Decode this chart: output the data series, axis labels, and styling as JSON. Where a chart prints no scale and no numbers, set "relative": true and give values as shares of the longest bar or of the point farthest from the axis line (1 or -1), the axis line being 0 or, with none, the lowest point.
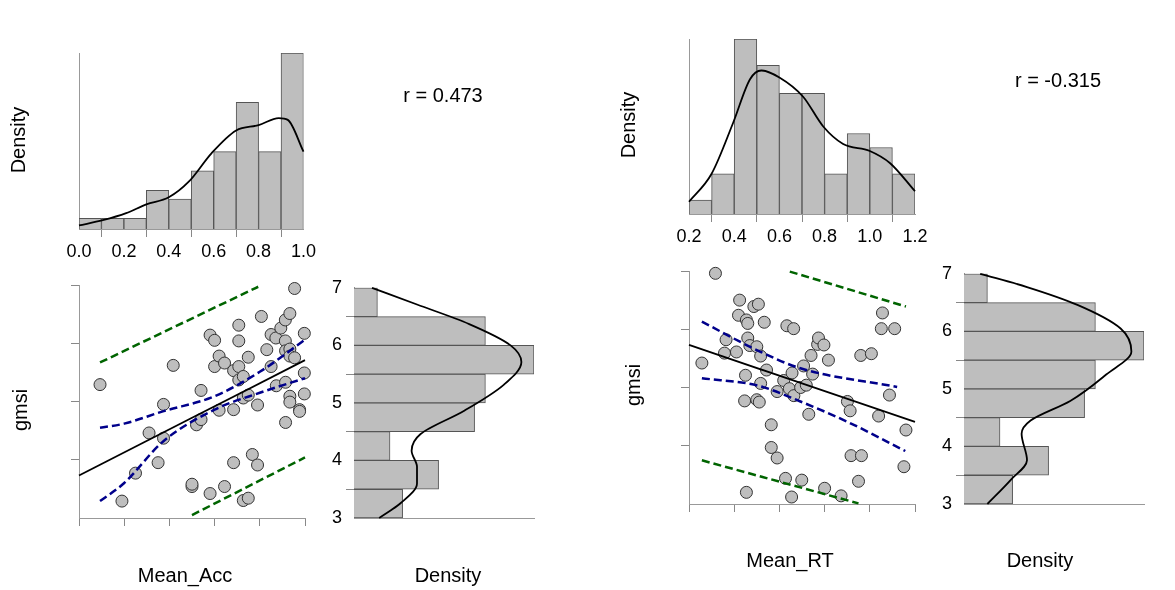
{
  "chart_data": [
    {
      "type": "histogram",
      "ylabel": "Density",
      "relative": true,
      "color": "#bebebe",
      "bins": [
        0,
        0.1,
        0.2,
        0.3,
        0.4,
        0.5,
        0.6,
        0.7,
        0.8,
        0.9,
        1.0
      ],
      "values": [
        0.06,
        0.06,
        0.06,
        0.22,
        0.17,
        0.33,
        0.44,
        0.72,
        0.44,
        1
      ],
      "xlim": [
        0,
        1
      ],
      "xticks": [
        {
          "value": 0,
          "label": "0.0"
        },
        0.2,
        0.4,
        0.6,
        0.8,
        {
          "value": 1,
          "label": "1.0"
        }
      ],
      "tick_labels": "x",
      "series": [
        {
          "type": "line",
          "color": "#000000",
          "x": [
            0,
            0.106,
            0.21,
            0.3,
            0.4,
            0.49,
            0.59,
            0.7,
            0.8,
            0.89,
            0.93,
            1.0
          ],
          "values": [
            0.02,
            0.05,
            0.09,
            0.14,
            0.18,
            0.27,
            0.43,
            0.56,
            0.59,
            0.63,
            0.62,
            0.44
          ]
        }
      ]
    },
    {
      "type": "histogram",
      "ylabel": "Density",
      "relative": true,
      "color": "#bebebe",
      "bins": [
        0.2,
        0.3,
        0.4,
        0.5,
        0.6,
        0.7,
        0.8,
        0.9,
        1.0,
        1.1,
        1.2
      ],
      "values": [
        0.08,
        0.23,
        1,
        0.85,
        0.69,
        0.69,
        0.23,
        0.46,
        0.38,
        0.23
      ],
      "xlim": [
        0.2,
        1.2
      ],
      "xticks": [
        0.2,
        0.4,
        0.6,
        0.8,
        {
          "value": 1,
          "label": "1.0"
        },
        1.2
      ],
      "tick_labels": "x",
      "series": [
        {
          "type": "line",
          "color": "#000000",
          "x": [
            0.2,
            0.3,
            0.395,
            0.47,
            0.52,
            0.6,
            0.705,
            0.794,
            0.882,
            1.0,
            1.09,
            1.2
          ],
          "values": [
            0.07,
            0.23,
            0.52,
            0.77,
            0.82,
            0.78,
            0.67,
            0.5,
            0.4,
            0.36,
            0.29,
            0.13
          ]
        }
      ]
    },
    {
      "type": "scatter",
      "xlabel": "Mean_Acc",
      "ylabel": "gmsi",
      "annotations": [
        "r = 0.473"
      ],
      "xlim": [
        0,
        1
      ],
      "xticks": [
        {
          "value": 0,
          "label": null
        },
        {
          "value": 0.2,
          "label": null
        },
        {
          "value": 0.4,
          "label": null
        },
        {
          "value": 0.6,
          "label": null
        },
        {
          "value": 0.8,
          "label": null
        },
        {
          "value": 1,
          "label": null
        }
      ],
      "ylim": [
        3,
        7
      ],
      "yticks": [
        {
          "value": 3,
          "label": null
        },
        {
          "value": 4,
          "label": null
        },
        {
          "value": 5,
          "label": null
        },
        {
          "value": 6,
          "label": null
        },
        {
          "value": 7,
          "label": null
        }
      ],
      "tick_labels": false,
      "series": [
        {
          "type": "scatter",
          "marker": "circle",
          "color": "#bebebe",
          "x": [
            0.093,
            0.19,
            0.25,
            0.31,
            0.35,
            0.374,
            0.374,
            0.417,
            0.5,
            0.5,
            0.52,
            0.54,
            0.54,
            0.58,
            0.58,
            0.6,
            0.6,
            0.62,
            0.62,
            0.644,
            0.644,
            0.684,
            0.684,
            0.684,
            0.707,
            0.707,
            0.707,
            0.707,
            0.727,
            0.727,
            0.727,
            0.749,
            0.749,
            0.749,
            0.767,
            0.79,
            0.79,
            0.807,
            0.831,
            0.85,
            0.85,
            0.871,
            0.873,
            0.893,
            0.913,
            0.913,
            0.914,
            0.914,
            0.914,
            0.933,
            0.933,
            0.933,
            0.933,
            0.933,
            0.954,
            0.954,
            0.976,
            0.976,
            0.997,
            0.997,
            0.997
          ],
          "values": [
            5.29,
            3.29,
            3.77,
            4.46,
            3.95,
            4.95,
            4.37,
            5.62,
            3.54,
            3.58,
            4.6,
            4.69,
            5.19,
            3.42,
            6.14,
            6.05,
            5.6,
            5.78,
            4.85,
            5.66,
            3.54,
            5.53,
            3.95,
            4.86,
            6.31,
            6.04,
            5.6,
            5.37,
            5.43,
            5.06,
            3.3,
            5.76,
            5.11,
            3.34,
            4.09,
            3.91,
            4.94,
            6.46,
            5.89,
            6.15,
            5.6,
            6.09,
            5.27,
            6.26,
            6.04,
            6.4,
            5.87,
            5.33,
            4.64,
            6.51,
            5.9,
            5.78,
            5.09,
            4.99,
            5.75,
            6.94,
            4.86,
            4.83,
            6.17,
            5.49,
            5.13
          ]
        },
        {
          "type": "line",
          "color": "#000000",
          "x": [
            0,
            1
          ],
          "values": [
            3.73,
            5.71
          ]
        },
        {
          "type": "line",
          "color": "#00008b",
          "line_style": "dashed",
          "x": [
            0.093,
            0.2,
            0.371,
            0.6,
            0.8,
            1
          ],
          "values": [
            4.55,
            4.62,
            4.83,
            5.09,
            5.51,
            6.06
          ]
        },
        {
          "type": "line",
          "color": "#00008b",
          "line_style": "dashed",
          "x": [
            0.093,
            0.2,
            0.371,
            0.6,
            0.8,
            1
          ],
          "values": [
            3.29,
            3.6,
            4.31,
            4.86,
            5.15,
            5.4
          ]
        },
        {
          "type": "line",
          "color": "#006400",
          "line_style": "dashed",
          "x": [
            0.093,
            0.793
          ],
          "values": [
            5.67,
            6.97
          ]
        },
        {
          "type": "line",
          "color": "#006400",
          "line_style": "dashed",
          "x": [
            0.5,
            1
          ],
          "values": [
            3.05,
            4.04
          ]
        }
      ]
    },
    {
      "type": "histogram",
      "orientation": "horizontal",
      "xlabel": "Density",
      "relative": true,
      "color": "#bebebe",
      "bins": [
        3,
        3.5,
        4,
        4.5,
        5,
        5.5,
        6,
        6.5,
        7
      ],
      "values": [
        0.27,
        0.47,
        0.2,
        0.67,
        0.73,
        1,
        0.73,
        0.13
      ],
      "ylim": [
        3,
        7
      ],
      "yticks": [
        3,
        4,
        5,
        6,
        7
      ],
      "tick_labels": "y",
      "series": [
        {
          "type": "line",
          "color": "#000000",
          "x": [
            3.0,
            3.26,
            3.6,
            3.89,
            4.17,
            4.46,
            4.86,
            5.31,
            5.71,
            6.0,
            6.37,
            6.71,
            7.0
          ],
          "values": [
            0.14,
            0.26,
            0.35,
            0.35,
            0.32,
            0.37,
            0.61,
            0.83,
            0.93,
            0.87,
            0.64,
            0.35,
            0.1
          ]
        }
      ]
    },
    {
      "type": "scatter",
      "xlabel": "Mean_RT",
      "ylabel": "gmsi",
      "annotations": [
        "r = -0.315"
      ],
      "xlim": [
        0.2,
        1.2
      ],
      "xticks": [
        {
          "value": 0.2,
          "label": null
        },
        {
          "value": 0.4,
          "label": null
        },
        {
          "value": 0.6,
          "label": null
        },
        {
          "value": 0.8,
          "label": null
        },
        {
          "value": 1,
          "label": null
        },
        {
          "value": 1.2,
          "label": null
        }
      ],
      "ylim": [
        3,
        7
      ],
      "yticks": [
        {
          "value": 3,
          "label": null
        },
        {
          "value": 4,
          "label": null
        },
        {
          "value": 5,
          "label": null
        },
        {
          "value": 6,
          "label": null
        },
        {
          "value": 7,
          "label": null
        }
      ],
      "tick_labels": false,
      "series": [
        {
          "type": "scatter",
          "marker": "circle",
          "color": "#bebebe",
          "x": [
            0.317,
            0.257,
            0.357,
            0.364,
            0.41,
            0.424,
            0.419,
            0.45,
            0.446,
            0.454,
            0.46,
            0.46,
            0.469,
            0.454,
            0.487,
            0.507,
            0.5,
            0.5,
            0.511,
            0.517,
            0.533,
            0.517,
            0.543,
            0.564,
            0.564,
            0.59,
            0.59,
            0.619,
            0.627,
            0.633,
            0.644,
            0.656,
            0.654,
            0.663,
            0.664,
            0.694,
            0.699,
            0.707,
            0.719,
            0.73,
            0.74,
            0.747,
            0.769,
            0.773,
            0.797,
            0.8,
            0.817,
            0.873,
            0.901,
            0.913,
            0.917,
            0.95,
            0.96,
            0.963,
            1.007,
            1.039,
            1.051,
            1.056,
            1.087,
            1.11,
            1.151,
            1.16
          ],
          "values": [
            6.96,
            5.42,
            5.59,
            5.82,
            5.61,
            6.5,
            6.24,
            5.21,
            4.77,
            6.16,
            6.1,
            5.85,
            5.72,
            3.2,
            6.39,
            6.43,
            5.7,
            4.79,
            4.75,
            5.54,
            6.12,
            5.07,
            5.3,
            4.36,
            3.97,
            4.93,
            3.79,
            5.12,
            3.44,
            6.06,
            4.98,
            5.25,
            3.12,
            6.01,
            4.86,
            5.0,
            3.41,
            5.37,
            5.04,
            4.54,
            5.55,
            5.23,
            5.74,
            5.85,
            5.73,
            3.27,
            5.47,
            3.14,
            4.76,
            4.6,
            3.83,
            3.39,
            5.55,
            3.83,
            5.58,
            4.51,
            6.01,
            6.28,
            4.87,
            6.01,
            3.64,
            4.27
          ]
        },
        {
          "type": "line",
          "color": "#000000",
          "x": [
            0.2,
            1.2
          ],
          "values": [
            5.73,
            4.41
          ]
        },
        {
          "type": "line",
          "color": "#00008b",
          "line_style": "dashed",
          "x": [
            0.257,
            0.507,
            0.693,
            1.121
          ],
          "values": [
            6.13,
            5.63,
            5.33,
            5.01
          ]
        },
        {
          "type": "line",
          "color": "#00008b",
          "line_style": "dashed",
          "x": [
            0.257,
            0.507,
            0.693,
            0.907,
            1.157
          ],
          "values": [
            5.16,
            5.03,
            4.76,
            4.4,
            3.91
          ]
        },
        {
          "type": "line",
          "color": "#006400",
          "line_style": "dashed",
          "x": [
            0.646,
            1.16
          ],
          "values": [
            6.99,
            6.39
          ]
        },
        {
          "type": "line",
          "color": "#006400",
          "line_style": "dashed",
          "x": [
            0.257,
            0.95
          ],
          "values": [
            3.75,
            3.01
          ]
        }
      ]
    },
    {
      "type": "histogram",
      "orientation": "horizontal",
      "xlabel": "Density",
      "relative": true,
      "color": "#bebebe",
      "bins": [
        3,
        3.5,
        4,
        4.5,
        5,
        5.5,
        6,
        6.5,
        7
      ],
      "values": [
        0.27,
        0.47,
        0.2,
        0.67,
        0.73,
        1,
        0.73,
        0.13
      ],
      "ylim": [
        3,
        7
      ],
      "yticks": [
        3,
        4,
        5,
        6,
        7
      ],
      "tick_labels": "y",
      "series": [
        {
          "type": "line",
          "color": "#000000",
          "x": [
            3.0,
            3.42,
            3.76,
            4.22,
            4.45,
            4.79,
            5.25,
            5.65,
            6.05,
            6.46,
            6.77,
            7.0
          ],
          "values": [
            0.13,
            0.26,
            0.35,
            0.32,
            0.37,
            0.59,
            0.79,
            0.93,
            0.87,
            0.63,
            0.35,
            0.09
          ]
        }
      ]
    }
  ]
}
